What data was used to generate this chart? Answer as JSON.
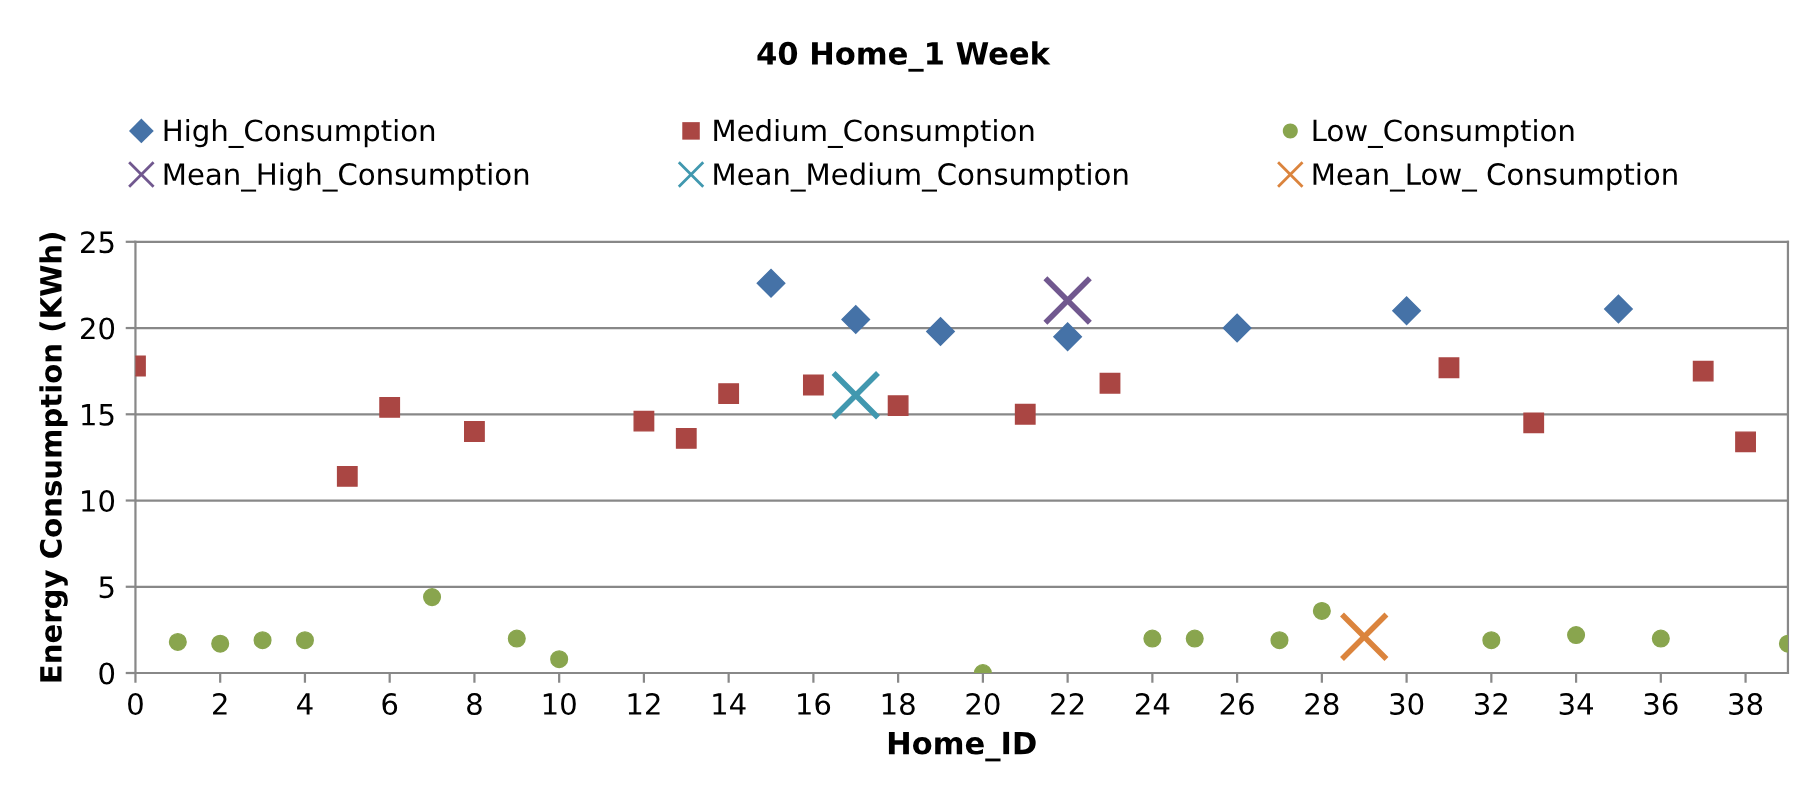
{
  "chart_data": {
    "type": "scatter",
    "title": "40 Home_1 Week",
    "xlabel": "Home_ID",
    "ylabel": "Energy Consumption (KWh)",
    "xlim": [
      0,
      39
    ],
    "xticks": [
      0,
      2,
      4,
      6,
      8,
      10,
      12,
      14,
      16,
      18,
      20,
      22,
      24,
      26,
      28,
      30,
      32,
      34,
      36,
      38
    ],
    "ylim": [
      0,
      25
    ],
    "yticks": [
      0,
      5,
      10,
      15,
      20,
      25
    ],
    "grid": "y",
    "legend": "top",
    "series": [
      {
        "name": "High_Consumption",
        "color": "#4572a7",
        "marker": "diamond",
        "x": [
          15,
          17,
          19,
          22,
          26,
          30,
          35
        ],
        "values": [
          22.6,
          20.5,
          19.8,
          19.5,
          20.0,
          21.0,
          21.1
        ]
      },
      {
        "name": "Medium_Consumption",
        "color": "#aa4643",
        "marker": "square",
        "x": [
          0,
          5,
          6,
          8,
          12,
          13,
          14,
          16,
          18,
          21,
          23,
          31,
          33,
          37,
          38
        ],
        "values": [
          17.8,
          11.4,
          15.4,
          14.0,
          14.6,
          13.6,
          16.2,
          16.7,
          15.5,
          15.0,
          16.8,
          17.7,
          14.5,
          17.5,
          13.4
        ]
      },
      {
        "name": "Low_Consumption",
        "color": "#89a54e",
        "marker": "circle",
        "x": [
          1,
          2,
          3,
          4,
          7,
          9,
          10,
          20,
          24,
          25,
          27,
          28,
          32,
          34,
          36,
          39
        ],
        "values": [
          1.8,
          1.7,
          1.9,
          1.9,
          4.4,
          2.0,
          0.8,
          0.0,
          2.0,
          2.0,
          1.9,
          3.6,
          1.9,
          2.2,
          2.0,
          1.7
        ]
      },
      {
        "name": "Mean_High_Consumption",
        "color": "#71588f",
        "marker": "cross",
        "x": [
          22
        ],
        "values": [
          21.6
        ]
      },
      {
        "name": "Mean_Medium_Consumption",
        "color": "#4198af",
        "marker": "cross",
        "x": [
          17
        ],
        "values": [
          16.1
        ]
      },
      {
        "name": "Mean_Low_ Consumption",
        "color": "#db843d",
        "marker": "cross",
        "x": [
          29
        ],
        "values": [
          2.1
        ]
      }
    ]
  }
}
